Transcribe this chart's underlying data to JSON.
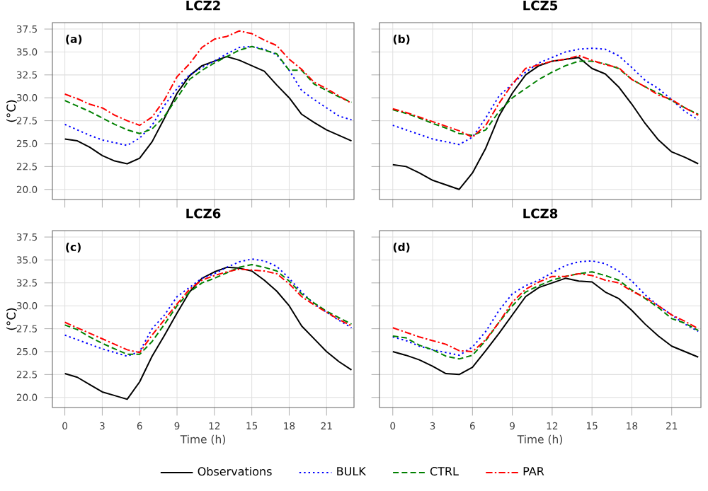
{
  "chart_data": [
    {
      "type": "line",
      "title": "LCZ2",
      "ylabel": "(°C)",
      "annotations": [
        "(a)"
      ],
      "tick_labels": "y",
      "grid": true,
      "legend": "bottom",
      "marker": "none",
      "x": [
        0,
        1,
        2,
        3,
        4,
        5,
        6,
        7,
        8,
        9,
        10,
        11,
        12,
        13,
        14,
        15,
        16,
        17,
        18,
        19,
        20,
        21,
        22,
        23
      ],
      "xlim": [
        -1,
        23.2
      ],
      "ylim": [
        18.9,
        38.2
      ],
      "xticks": [
        0,
        3,
        6,
        9,
        12,
        15,
        18,
        21
      ],
      "yticks": [
        {
          "value": 20,
          "label": "20.0"
        },
        22.5,
        {
          "value": 25,
          "label": "25.0"
        },
        27.5,
        {
          "value": 30,
          "label": "30.0"
        },
        32.5,
        {
          "value": 35,
          "label": "35.0"
        },
        37.5
      ],
      "series": [
        {
          "name": "Observations",
          "color": "#000000",
          "line_style": "solid",
          "values": [
            25.5,
            25.3,
            24.6,
            23.7,
            23.1,
            22.8,
            23.4,
            25.2,
            27.8,
            30.5,
            32.4,
            33.5,
            34.0,
            34.5,
            34.1,
            33.5,
            32.9,
            31.4,
            30.0,
            28.2,
            27.3,
            26.5,
            25.9,
            25.3
          ]
        },
        {
          "name": "BULK",
          "color": "#0000ff",
          "line_style": "dotted",
          "values": [
            27.1,
            26.5,
            25.9,
            25.4,
            25.1,
            24.8,
            25.6,
            27.0,
            29.2,
            31.0,
            32.5,
            33.3,
            34.0,
            34.8,
            35.5,
            35.6,
            35.3,
            34.7,
            33.0,
            30.8,
            29.8,
            28.9,
            28.0,
            27.6
          ]
        },
        {
          "name": "CTRL",
          "color": "#008000",
          "line_style": "dashed",
          "values": [
            29.7,
            29.1,
            28.5,
            27.8,
            27.1,
            26.5,
            26.1,
            26.6,
            28.0,
            30.0,
            32.0,
            33.0,
            33.8,
            34.5,
            35.2,
            35.6,
            35.2,
            34.8,
            33.0,
            33.0,
            31.5,
            30.8,
            30.1,
            29.5
          ]
        },
        {
          "name": "PAR",
          "color": "#ff0000",
          "line_style": "dashdot",
          "values": [
            30.4,
            29.9,
            29.3,
            28.9,
            28.1,
            27.5,
            27.0,
            27.9,
            29.8,
            32.3,
            33.7,
            35.5,
            36.4,
            36.7,
            37.3,
            37.0,
            36.3,
            35.7,
            34.2,
            33.1,
            31.7,
            31.0,
            30.2,
            29.4
          ]
        }
      ]
    },
    {
      "type": "line",
      "title": "LCZ5",
      "annotations": [
        "(b)"
      ],
      "tick_labels": false,
      "grid": true,
      "marker": "none",
      "x": [
        0,
        1,
        2,
        3,
        4,
        5,
        6,
        7,
        8,
        9,
        10,
        11,
        12,
        13,
        14,
        15,
        16,
        17,
        18,
        19,
        20,
        21,
        22,
        23
      ],
      "xlim": [
        -1,
        23.2
      ],
      "ylim": [
        18.9,
        38.2
      ],
      "xticks": [
        0,
        3,
        6,
        9,
        12,
        15,
        18,
        21
      ],
      "yticks": [
        20,
        22.5,
        25,
        27.5,
        30,
        32.5,
        35,
        37.5
      ],
      "series": [
        {
          "color": "#000000",
          "line_style": "solid",
          "values": [
            22.7,
            22.5,
            21.8,
            21.0,
            20.5,
            20.0,
            21.8,
            24.5,
            28.0,
            30.5,
            32.5,
            33.5,
            34.0,
            34.2,
            34.4,
            33.2,
            32.6,
            31.2,
            29.3,
            27.2,
            25.4,
            24.1,
            23.5,
            22.8
          ]
        },
        {
          "color": "#0000ff",
          "line_style": "dotted",
          "values": [
            27.0,
            26.5,
            26.0,
            25.5,
            25.2,
            24.9,
            25.7,
            27.8,
            30.2,
            31.5,
            32.8,
            33.8,
            34.4,
            35.0,
            35.3,
            35.4,
            35.3,
            34.6,
            33.3,
            31.9,
            31.0,
            29.8,
            28.5,
            27.6
          ]
        },
        {
          "color": "#008000",
          "line_style": "dashed",
          "values": [
            28.7,
            28.3,
            27.8,
            27.2,
            26.7,
            26.1,
            25.9,
            26.5,
            28.5,
            30.0,
            31.0,
            32.0,
            32.8,
            33.5,
            34.0,
            34.0,
            33.7,
            33.2,
            32.0,
            31.2,
            30.5,
            29.7,
            28.9,
            28.2
          ]
        },
        {
          "color": "#ff0000",
          "line_style": "dashdot",
          "values": [
            28.8,
            28.4,
            27.9,
            27.4,
            26.9,
            26.4,
            25.7,
            27.0,
            29.4,
            31.5,
            33.2,
            33.6,
            34.0,
            34.2,
            34.6,
            34.1,
            33.6,
            33.3,
            32.0,
            31.2,
            30.3,
            29.8,
            28.9,
            28.1
          ]
        }
      ]
    },
    {
      "type": "line",
      "title": "LCZ6",
      "xlabel": "Time (h)",
      "ylabel": "(°C)",
      "annotations": [
        "(c)"
      ],
      "grid": true,
      "marker": "none",
      "x": [
        0,
        1,
        2,
        3,
        4,
        5,
        6,
        7,
        8,
        9,
        10,
        11,
        12,
        13,
        14,
        15,
        16,
        17,
        18,
        19,
        20,
        21,
        22,
        23
      ],
      "xlim": [
        -1,
        23.2
      ],
      "ylim": [
        18.9,
        38.2
      ],
      "xticks": [
        0,
        3,
        6,
        9,
        12,
        15,
        18,
        21
      ],
      "yticks": [
        {
          "value": 20,
          "label": "20.0"
        },
        22.5,
        {
          "value": 25,
          "label": "25.0"
        },
        27.5,
        {
          "value": 30,
          "label": "30.0"
        },
        32.5,
        {
          "value": 35,
          "label": "35.0"
        },
        37.5
      ],
      "series": [
        {
          "color": "#000000",
          "line_style": "solid",
          "values": [
            22.6,
            22.2,
            21.4,
            20.6,
            20.2,
            19.8,
            21.7,
            24.5,
            26.8,
            29.2,
            31.5,
            33.0,
            33.7,
            34.2,
            34.1,
            33.8,
            32.8,
            31.6,
            30.0,
            27.8,
            26.4,
            25.0,
            23.9,
            23.0
          ]
        },
        {
          "color": "#0000ff",
          "line_style": "dotted",
          "values": [
            26.8,
            26.3,
            25.8,
            25.3,
            24.9,
            24.5,
            25.0,
            27.5,
            29.0,
            31.0,
            32.0,
            33.0,
            33.5,
            34.2,
            34.8,
            35.1,
            34.9,
            34.3,
            33.0,
            31.5,
            30.2,
            29.3,
            28.4,
            27.6
          ]
        },
        {
          "color": "#008000",
          "line_style": "dashed",
          "values": [
            27.9,
            27.4,
            26.6,
            25.9,
            25.3,
            24.7,
            24.7,
            26.1,
            28.0,
            30.0,
            31.5,
            32.5,
            33.0,
            33.6,
            34.2,
            34.5,
            34.2,
            33.8,
            32.7,
            31.3,
            30.3,
            29.4,
            28.7,
            28.0
          ]
        },
        {
          "color": "#ff0000",
          "line_style": "dashdot",
          "values": [
            28.2,
            27.6,
            27.0,
            26.4,
            25.8,
            25.2,
            24.9,
            26.8,
            28.5,
            30.2,
            31.8,
            32.8,
            33.3,
            33.7,
            34.0,
            33.9,
            33.8,
            33.5,
            32.4,
            31.0,
            30.1,
            29.3,
            28.5,
            27.8
          ]
        }
      ]
    },
    {
      "type": "line",
      "title": "LCZ8",
      "xlabel": "Time (h)",
      "annotations": [
        "(d)"
      ],
      "tick_labels": "x",
      "grid": true,
      "marker": "none",
      "x": [
        0,
        1,
        2,
        3,
        4,
        5,
        6,
        7,
        8,
        9,
        10,
        11,
        12,
        13,
        14,
        15,
        16,
        17,
        18,
        19,
        20,
        21,
        22,
        23
      ],
      "xlim": [
        -1,
        23.2
      ],
      "ylim": [
        18.9,
        38.2
      ],
      "xticks": [
        0,
        3,
        6,
        9,
        12,
        15,
        18,
        21
      ],
      "yticks": [
        20,
        22.5,
        25,
        27.5,
        30,
        32.5,
        35,
        37.5
      ],
      "series": [
        {
          "color": "#000000",
          "line_style": "solid",
          "values": [
            25.0,
            24.6,
            24.1,
            23.4,
            22.6,
            22.5,
            23.3,
            25.1,
            27.0,
            29.0,
            31.0,
            32.0,
            32.5,
            33.0,
            32.7,
            32.6,
            31.5,
            30.8,
            29.5,
            28.0,
            26.7,
            25.6,
            25.0,
            24.4
          ]
        },
        {
          "color": "#0000ff",
          "line_style": "dotted",
          "values": [
            26.6,
            26.2,
            25.6,
            25.2,
            24.9,
            24.6,
            25.5,
            27.2,
            29.5,
            31.3,
            32.2,
            32.8,
            33.6,
            34.4,
            34.8,
            34.9,
            34.6,
            33.8,
            32.7,
            31.2,
            30.0,
            29.0,
            28.0,
            27.2
          ]
        },
        {
          "color": "#008000",
          "line_style": "dashed",
          "values": [
            26.7,
            26.5,
            25.7,
            25.2,
            24.5,
            24.2,
            24.6,
            26.2,
            28.2,
            30.0,
            31.5,
            32.2,
            32.8,
            33.2,
            33.5,
            33.7,
            33.3,
            32.8,
            31.7,
            30.8,
            29.8,
            28.6,
            28.1,
            27.3
          ]
        },
        {
          "color": "#ff0000",
          "line_style": "dashdot",
          "values": [
            27.6,
            27.1,
            26.6,
            26.2,
            25.8,
            25.1,
            25.0,
            26.3,
            28.2,
            30.4,
            31.8,
            32.6,
            33.2,
            33.2,
            33.5,
            33.3,
            32.8,
            32.5,
            31.6,
            30.9,
            30.0,
            29.0,
            28.3,
            27.5
          ]
        }
      ]
    }
  ]
}
